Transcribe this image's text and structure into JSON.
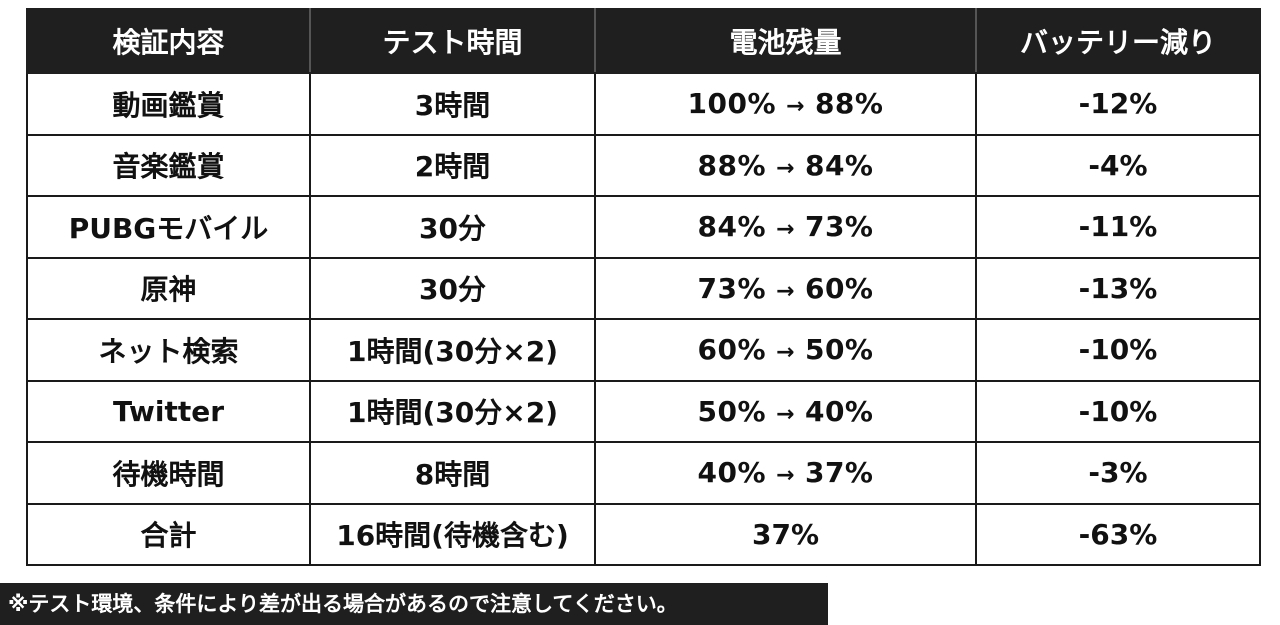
{
  "table": {
    "headers": [
      "検証内容",
      "テスト時間",
      "電池残量",
      "バッテリー減り"
    ],
    "rows": [
      {
        "task": "動画鑑賞",
        "time": "3時間",
        "battery_from": "100%",
        "battery_to": "88%",
        "drop": "-12%"
      },
      {
        "task": "音楽鑑賞",
        "time": "2時間",
        "battery_from": "88%",
        "battery_to": "84%",
        "drop": "-4%"
      },
      {
        "task": "PUBGモバイル",
        "time": "30分",
        "battery_from": "84%",
        "battery_to": "73%",
        "drop": "-11%"
      },
      {
        "task": "原神",
        "time": "30分",
        "battery_from": "73%",
        "battery_to": "60%",
        "drop": "-13%"
      },
      {
        "task": "ネット検索",
        "time": "1時間(30分×2)",
        "battery_from": "60%",
        "battery_to": "50%",
        "drop": "-10%"
      },
      {
        "task": "Twitter",
        "time": "1時間(30分×2)",
        "battery_from": "50%",
        "battery_to": "40%",
        "drop": "-10%"
      },
      {
        "task": "待機時間",
        "time": "8時間",
        "battery_from": "40%",
        "battery_to": "37%",
        "drop": "-3%"
      }
    ],
    "total": {
      "task": "合計",
      "time": "16時間(待機含む)",
      "battery": "37%",
      "drop": "-63%"
    },
    "arrow": "→"
  },
  "note": "※テスト環境、条件により差が出る場合があるので注意してください。"
}
